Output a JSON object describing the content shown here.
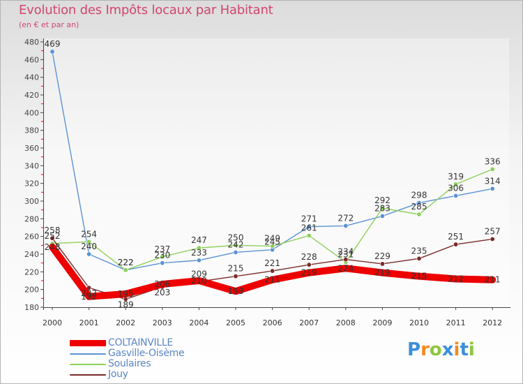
{
  "page": {
    "title": "Evolution des Impôts locaux par Habitant",
    "subtitle": "(en € et par an)",
    "logo_letters": [
      "P",
      "r",
      "o",
      "x",
      "i",
      "t",
      "i"
    ],
    "logo_text": "Proxiti"
  },
  "chart_data": {
    "type": "line",
    "title": "Evolution des Impôts locaux par Habitant",
    "subtitle": "(en € et par an)",
    "xlabel": "",
    "ylabel": "",
    "ylim": [
      180,
      480
    ],
    "yticks": [
      180,
      200,
      220,
      240,
      260,
      280,
      300,
      320,
      340,
      360,
      380,
      400,
      420,
      440,
      460,
      480
    ],
    "grid": false,
    "legend_position": "bottom-left",
    "categories": [
      "2000",
      "2001",
      "2002",
      "2003",
      "2004",
      "2005",
      "2006",
      "2007",
      "2008",
      "2009",
      "2010",
      "2011",
      "2012"
    ],
    "series": [
      {
        "name": "COLTAINVILLE",
        "color": "#ee0000",
        "values": [
          248,
          192,
          195,
          206,
          210,
          198,
          211,
          219,
          224,
          219,
          215,
          212,
          211
        ]
      },
      {
        "name": "Gasville-Oisème",
        "color": "#5b93d3",
        "values": [
          469,
          240,
          222,
          230,
          233,
          242,
          245,
          271,
          272,
          283,
          298,
          306,
          314
        ]
      },
      {
        "name": "Soulaires",
        "color": "#8ed05a",
        "values": [
          252,
          254,
          222,
          237,
          247,
          250,
          249,
          261,
          231,
          292,
          285,
          319,
          336
        ]
      },
      {
        "name": "Jouy",
        "color": "#7a2a2a",
        "values": [
          258,
          202,
          189,
          203,
          209,
          215,
          221,
          228,
          234,
          229,
          235,
          251,
          257
        ]
      }
    ]
  }
}
